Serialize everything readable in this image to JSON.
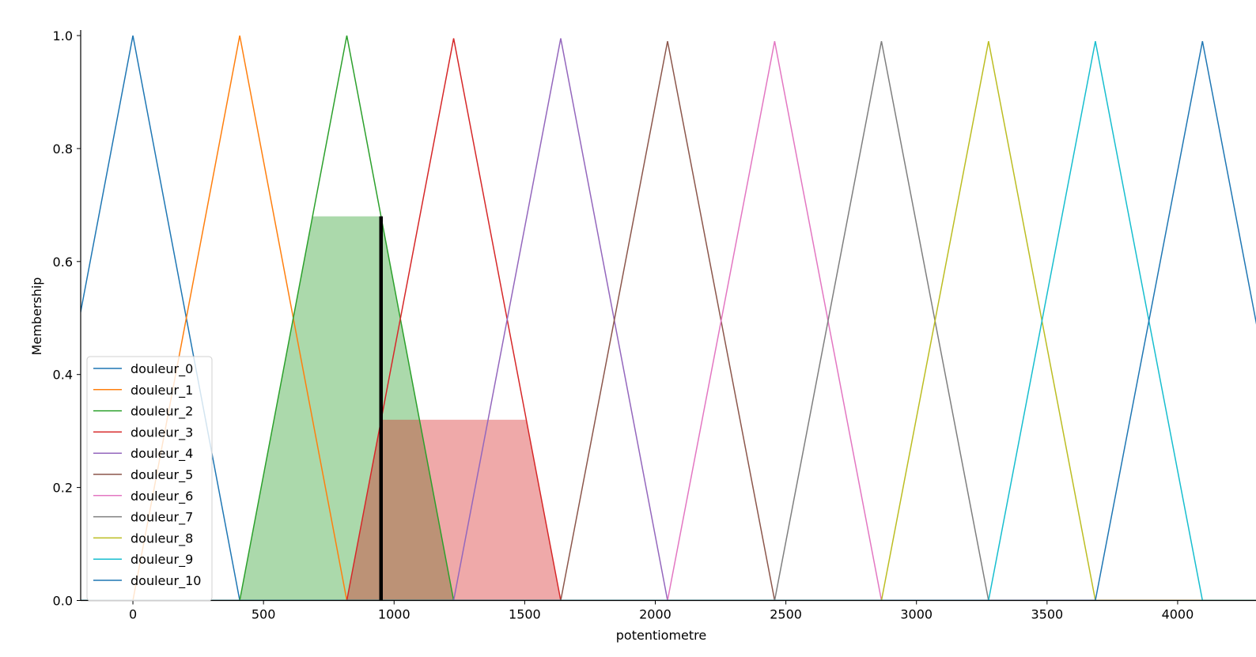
{
  "chart_data": {
    "type": "line",
    "xlabel": "potentiometre",
    "ylabel": "Membership",
    "xlim": [
      -200,
      4300
    ],
    "ylim": [
      0,
      1.0
    ],
    "x_ticks": [
      0,
      500,
      1000,
      1500,
      2000,
      2500,
      3000,
      3500,
      4000
    ],
    "y_ticks": [
      0.0,
      0.2,
      0.4,
      0.6,
      0.8,
      1.0
    ],
    "x_tick_labels": [
      "0",
      "500",
      "1000",
      "1500",
      "2000",
      "2500",
      "3000",
      "3500",
      "4000"
    ],
    "y_tick_labels": [
      "0.0",
      "0.2",
      "0.4",
      "0.6",
      "0.8",
      "1.0"
    ],
    "legend_position": "lower-left",
    "series": [
      {
        "name": "douleur_0",
        "color": "#1f77b4",
        "x": [
          -409,
          0,
          409
        ],
        "y": [
          0,
          1.0,
          0
        ]
      },
      {
        "name": "douleur_1",
        "color": "#ff7f0e",
        "x": [
          0,
          409,
          819
        ],
        "y": [
          0,
          1.0,
          0
        ]
      },
      {
        "name": "douleur_2",
        "color": "#2ca02c",
        "x": [
          409,
          819,
          1228
        ],
        "y": [
          0,
          1.0,
          0
        ]
      },
      {
        "name": "douleur_3",
        "color": "#d62728",
        "x": [
          819,
          1228,
          1638
        ],
        "y": [
          0,
          0.995,
          0
        ]
      },
      {
        "name": "douleur_4",
        "color": "#9467bd",
        "x": [
          1228,
          1638,
          2047
        ],
        "y": [
          0,
          0.995,
          0
        ]
      },
      {
        "name": "douleur_5",
        "color": "#8c564b",
        "x": [
          1638,
          2047,
          2457
        ],
        "y": [
          0,
          0.99,
          0
        ]
      },
      {
        "name": "douleur_6",
        "color": "#e377c2",
        "x": [
          2047,
          2457,
          2866
        ],
        "y": [
          0,
          0.99,
          0
        ]
      },
      {
        "name": "douleur_7",
        "color": "#7f7f7f",
        "x": [
          2457,
          2866,
          3276
        ],
        "y": [
          0,
          0.99,
          0
        ]
      },
      {
        "name": "douleur_8",
        "color": "#bcbd22",
        "x": [
          2866,
          3276,
          3685
        ],
        "y": [
          0,
          0.99,
          0
        ]
      },
      {
        "name": "douleur_9",
        "color": "#17becf",
        "x": [
          3276,
          3685,
          4095
        ],
        "y": [
          0,
          0.99,
          0
        ]
      },
      {
        "name": "douleur_10",
        "color": "#1f77b4",
        "x": [
          3685,
          4095,
          4504
        ],
        "y": [
          0,
          0.99,
          0
        ]
      }
    ],
    "activations": [
      {
        "series": "douleur_2",
        "color": "#2ca02c",
        "level": 0.68
      },
      {
        "series": "douleur_3",
        "color": "#d62728",
        "level": 0.32
      }
    ],
    "crisp_value": {
      "x": 950,
      "y": 0.68,
      "color": "#000000"
    }
  }
}
